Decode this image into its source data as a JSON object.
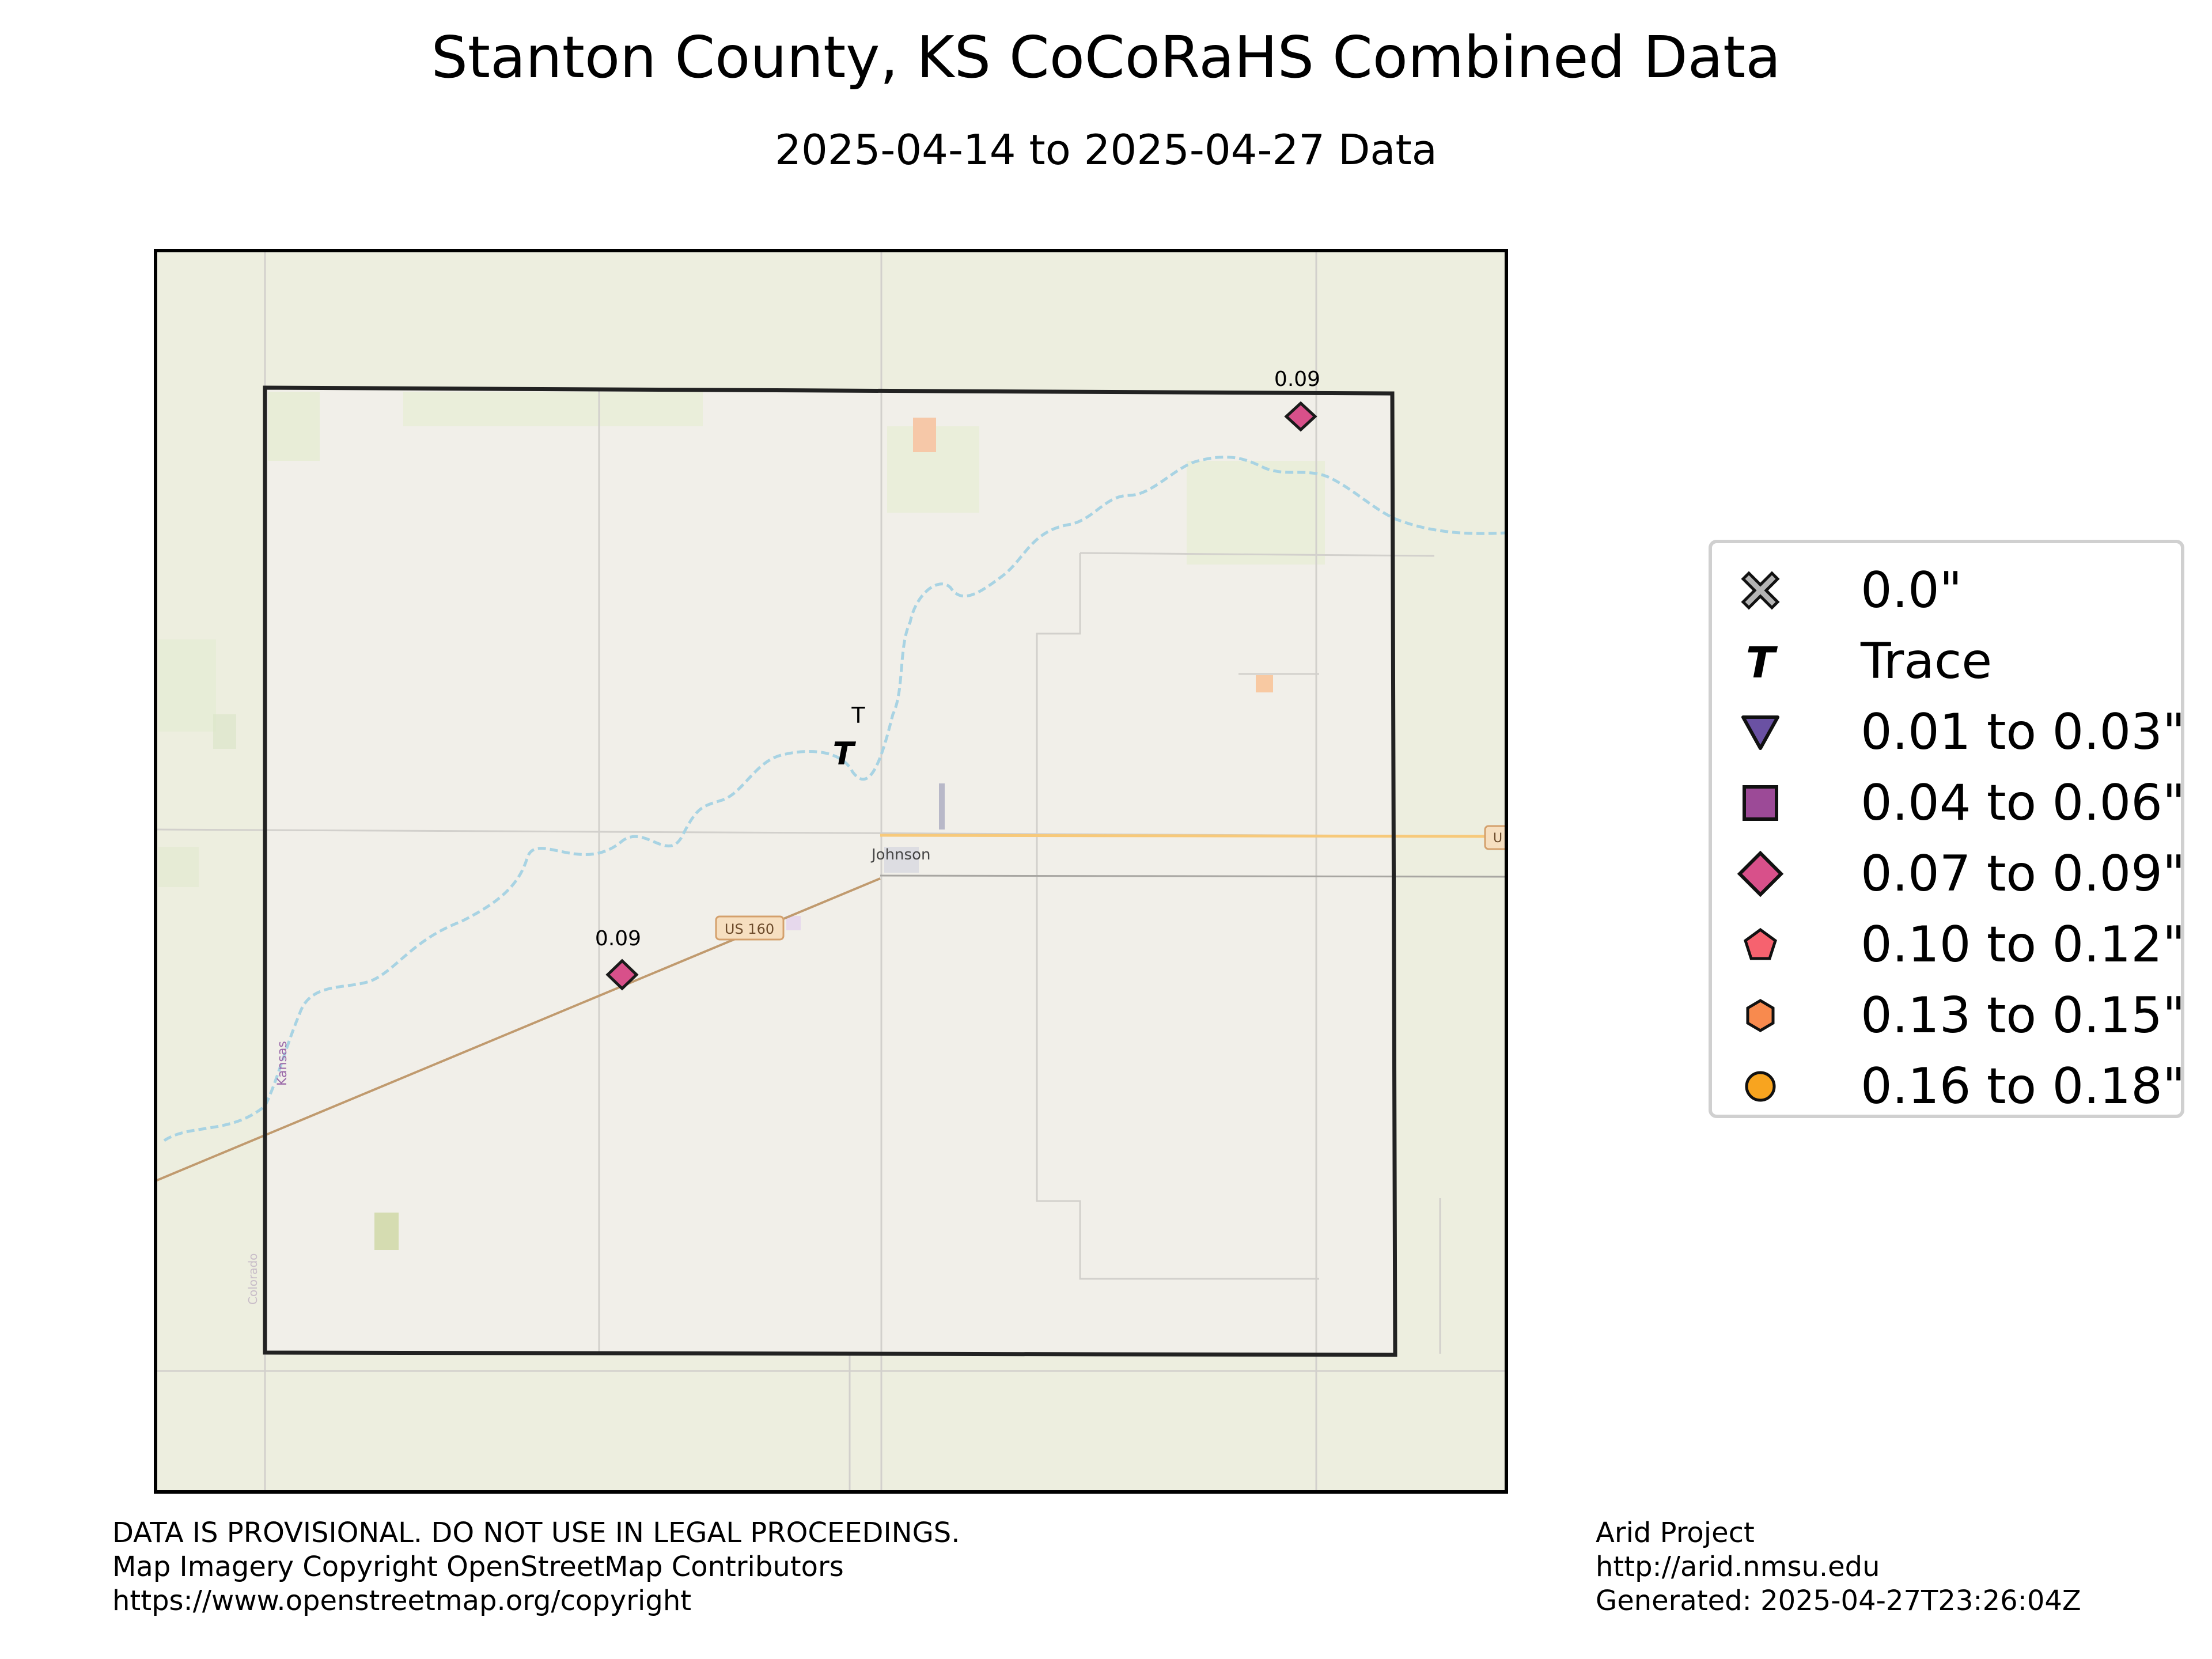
{
  "title": "Stanton County, KS CoCoRaHS Combined Data",
  "subtitle": "2025-04-14 to 2025-04-27 Data",
  "map_labels": {
    "town": "Johnson",
    "road_shield": "US 160",
    "road_shield_edge": "U",
    "state_label": "Kansas",
    "river_label": "Colorado"
  },
  "stations": [
    {
      "label": "0.09",
      "category": "0.07 to 0.09\"",
      "symbol": "diamond"
    },
    {
      "label": "0.09",
      "category": "0.07 to 0.09\"",
      "symbol": "diamond"
    },
    {
      "label": "T",
      "category": "Trace",
      "symbol": "trace-T"
    }
  ],
  "legend": [
    {
      "label": "0.0\"",
      "symbol": "x-marker",
      "color": "#b4b4b4"
    },
    {
      "label": "Trace",
      "symbol": "trace-T",
      "color": "#000000"
    },
    {
      "label": "0.01 to 0.03\"",
      "symbol": "triangle-down",
      "color": "#6a51a3"
    },
    {
      "label": "0.04 to 0.06\"",
      "symbol": "square",
      "color": "#9c4a97"
    },
    {
      "label": "0.07 to 0.09\"",
      "symbol": "diamond",
      "color": "#d8508a"
    },
    {
      "label": "0.10 to 0.12\"",
      "symbol": "pentagon",
      "color": "#f6626f"
    },
    {
      "label": "0.13 to 0.15\"",
      "symbol": "hexagon",
      "color": "#f88a4e"
    },
    {
      "label": "0.16 to 0.18\"",
      "symbol": "circle",
      "color": "#f8a41f"
    }
  ],
  "footer_left": [
    "DATA IS PROVISIONAL. DO NOT USE IN LEGAL PROCEEDINGS.",
    "Map Imagery Copyright OpenStreetMap Contributors",
    "https://www.openstreetmap.org/copyright"
  ],
  "footer_right": [
    "Arid Project",
    "http://arid.nmsu.edu",
    "Generated: 2025-04-27T23:26:04Z"
  ],
  "colors": {
    "basemap_outside": "#edeedf",
    "basemap_county": "#f1efe9",
    "county_border": "#222222",
    "river": "#a8d3e3",
    "highway": "#c09a6e",
    "state_highway": "#f7c97a",
    "diamond_fill": "#d8508a"
  }
}
